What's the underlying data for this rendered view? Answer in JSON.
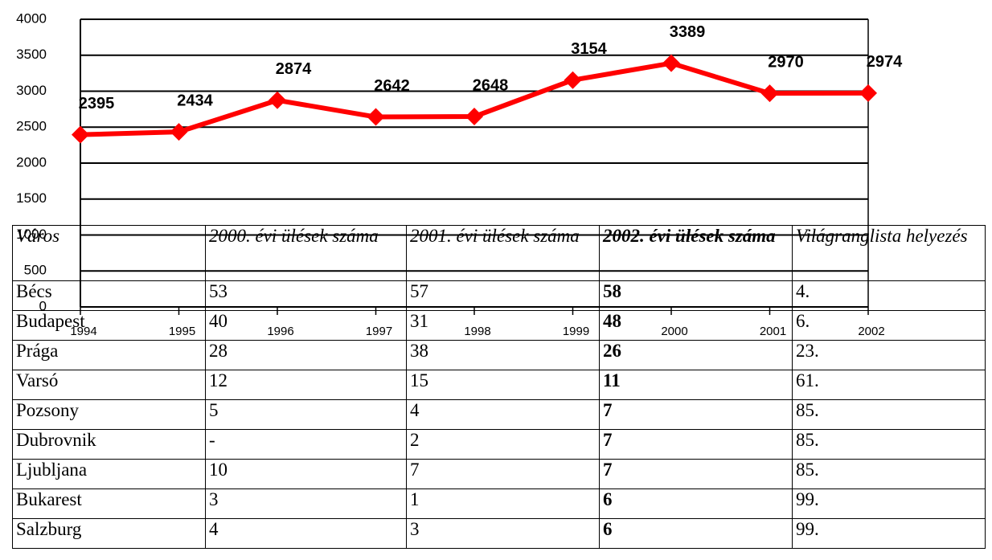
{
  "chart_data": {
    "type": "line",
    "categories": [
      "1994",
      "1995",
      "1996",
      "1997",
      "1998",
      "1999",
      "2000",
      "2001",
      "2002"
    ],
    "series": [
      {
        "color": "#ff0000",
        "values": [
          2395,
          2434,
          2874,
          2642,
          2648,
          3154,
          3389,
          2970,
          2974
        ]
      }
    ],
    "ylim": [
      0,
      4000
    ],
    "yticks": [
      0,
      500,
      1000,
      1500,
      2000,
      2500,
      3000,
      3500,
      4000
    ],
    "grid": true
  },
  "table": {
    "header": [
      "Város",
      "2000. évi ülések száma",
      "2001. évi ülések száma",
      "2002. évi ülések száma",
      "Világranglista helyezés"
    ],
    "rows": [
      [
        "Bécs",
        "53",
        "57",
        "58",
        "4."
      ],
      [
        "Budapest",
        "40",
        "31",
        "48",
        "6."
      ],
      [
        "Prága",
        "28",
        "38",
        "26",
        "23."
      ],
      [
        "Varsó",
        "12",
        "15",
        "11",
        "61."
      ],
      [
        "Pozsony",
        "5",
        "4",
        "7",
        "85."
      ],
      [
        "Dubrovnik",
        "-",
        "2",
        "7",
        "85."
      ],
      [
        "Ljubljana",
        "10",
        "7",
        "7",
        "85."
      ],
      [
        "Bukarest",
        "3",
        "1",
        "6",
        "99."
      ],
      [
        "Salzburg",
        "4",
        "3",
        "6",
        "99."
      ]
    ]
  }
}
